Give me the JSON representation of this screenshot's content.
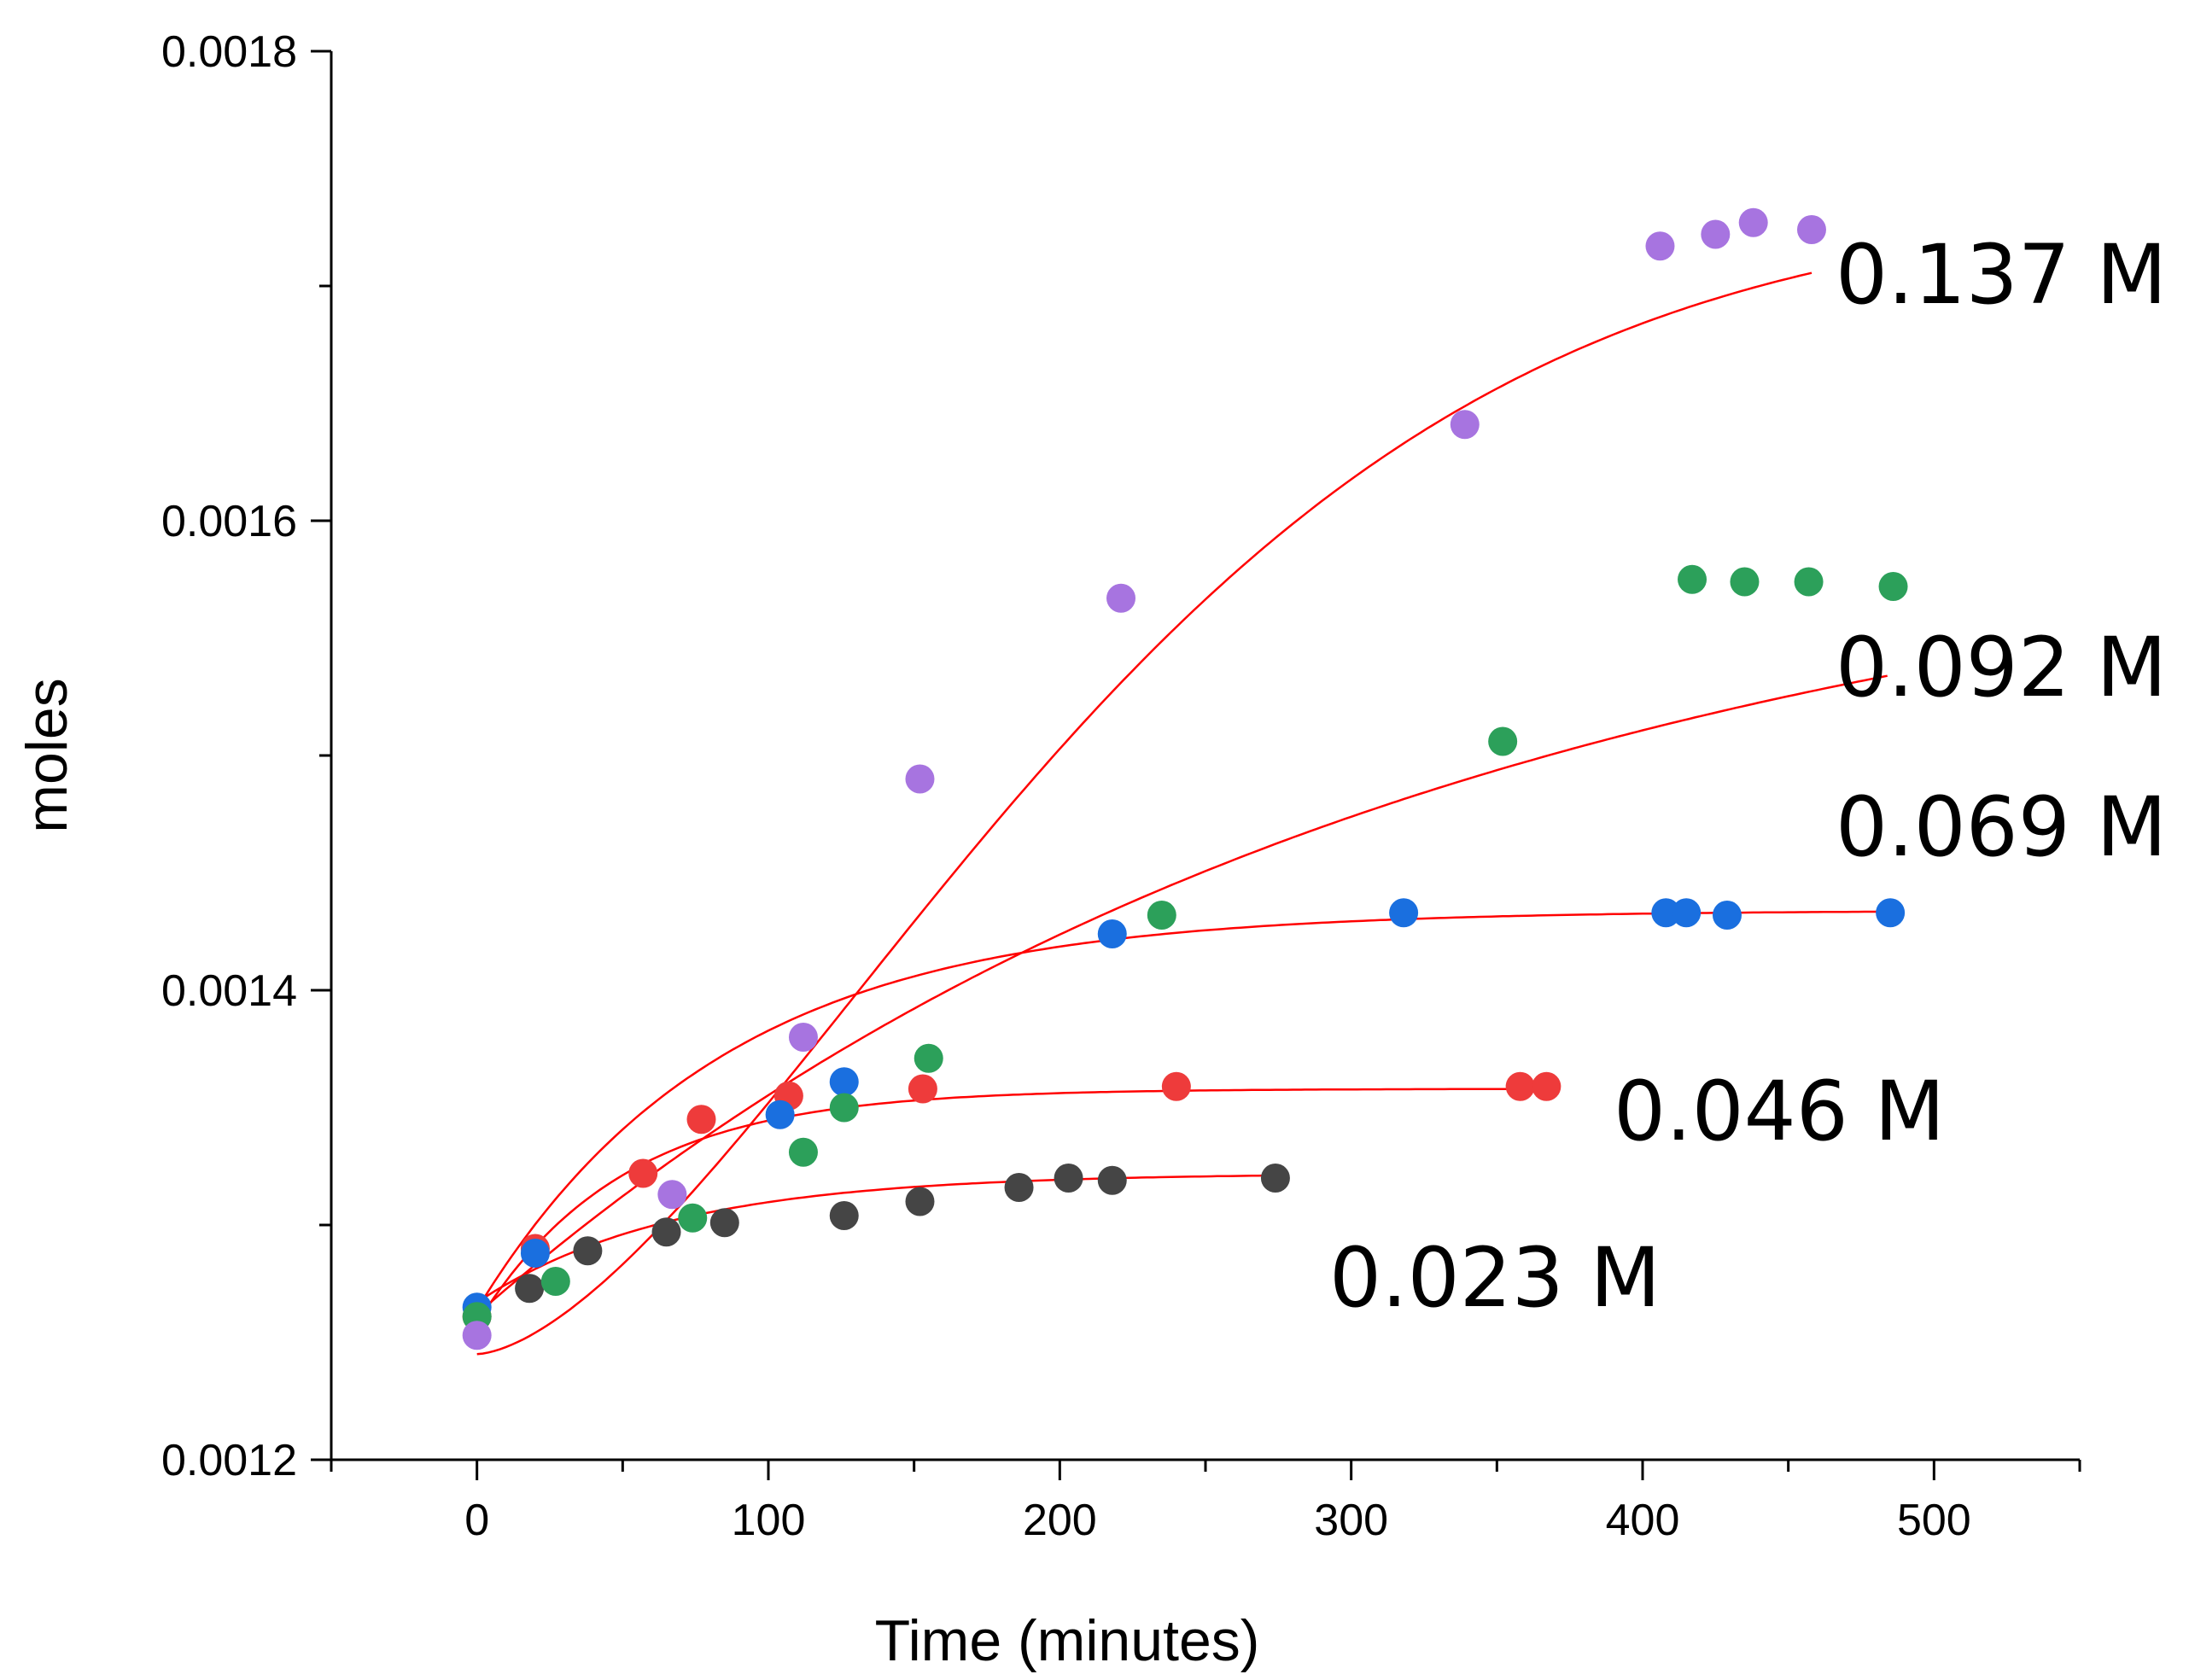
{
  "chart_data": {
    "type": "scatter",
    "title": "",
    "xlabel": "Time (minutes)",
    "ylabel": "moles",
    "xlim": [
      -50,
      550
    ],
    "ylim": [
      0.0012,
      0.0018
    ],
    "x_ticks": [
      0,
      100,
      200,
      300,
      400,
      500
    ],
    "x_tick_labels": [
      "0",
      "100",
      "200",
      "300",
      "400",
      "500"
    ],
    "y_ticks": [
      0.0012,
      0.0014,
      0.0016,
      0.0018
    ],
    "y_tick_labels": [
      "0.0012",
      "0.0014",
      "0.0016",
      "0.0018"
    ],
    "grid": false,
    "fit_color": "#ff0000",
    "series": [
      {
        "name": "0.023 M",
        "color": "#454545",
        "x": [
          18,
          38,
          65,
          85,
          126,
          152,
          186,
          203,
          218,
          274
        ],
        "y": [
          0.001273,
          0.001289,
          0.001297,
          0.001301,
          0.001304,
          0.00131,
          0.001316,
          0.00132,
          0.001319,
          0.00132
        ],
        "fit": {
          "y0": 0.001267,
          "a": 5.5e-05,
          "k": 0.015,
          "x_end": 275
        }
      },
      {
        "name": "0.046 M",
        "color": "#ee3b3b",
        "x": [
          0,
          20,
          57,
          77,
          107,
          153,
          240,
          358,
          367
        ],
        "y": [
          0.001261,
          0.00129,
          0.001322,
          0.001345,
          0.001355,
          0.001358,
          0.001359,
          0.001359,
          0.001359
        ],
        "fit": {
          "y0": 0.001258,
          "a": 0.0001,
          "k": 0.02,
          "x_end": 365
        }
      },
      {
        "name": "0.069 M",
        "color": "#1a6fdf",
        "x": [
          0,
          20,
          104,
          126,
          218,
          318,
          408,
          415,
          429,
          485
        ],
        "y": [
          0.001265,
          0.001288,
          0.001347,
          0.001361,
          0.001424,
          0.001433,
          0.001433,
          0.001433,
          0.001432,
          0.001433
        ],
        "fit": {
          "y0": 0.001264,
          "a": 0.00017,
          "k": 0.012,
          "x_end": 485
        }
      },
      {
        "name": "0.092 M",
        "color": "#2ca05a",
        "x": [
          0,
          27,
          74,
          112,
          126,
          155,
          235,
          352,
          417,
          435,
          457,
          486
        ],
        "y": [
          0.001261,
          0.001276,
          0.001303,
          0.001331,
          0.00135,
          0.001371,
          0.001432,
          0.001506,
          0.001575,
          0.001574,
          0.001574,
          0.001572
        ],
        "fit": {
          "y0": 0.001262,
          "a": 0.00035,
          "k": 0.0031,
          "x_end": 485
        }
      },
      {
        "name": "0.137 M",
        "color": "#a774e0",
        "x": [
          0,
          67,
          112,
          152,
          221,
          339,
          406,
          425,
          438,
          458
        ],
        "y": [
          0.001253,
          0.001313,
          0.00138,
          0.00149,
          0.001567,
          0.001641,
          0.001717,
          0.001722,
          0.001727,
          0.001724
        ],
        "fit": {
          "y0": 0.001245,
          "a": 0.00049,
          "k": 0.00013,
          "n": 2,
          "x_end": 458
        }
      }
    ]
  },
  "labels": {
    "s137": "0.137 M",
    "s092": "0.092 M",
    "s069": "0.069 M",
    "s046": "0.046 M",
    "s023": "0.023 M"
  }
}
